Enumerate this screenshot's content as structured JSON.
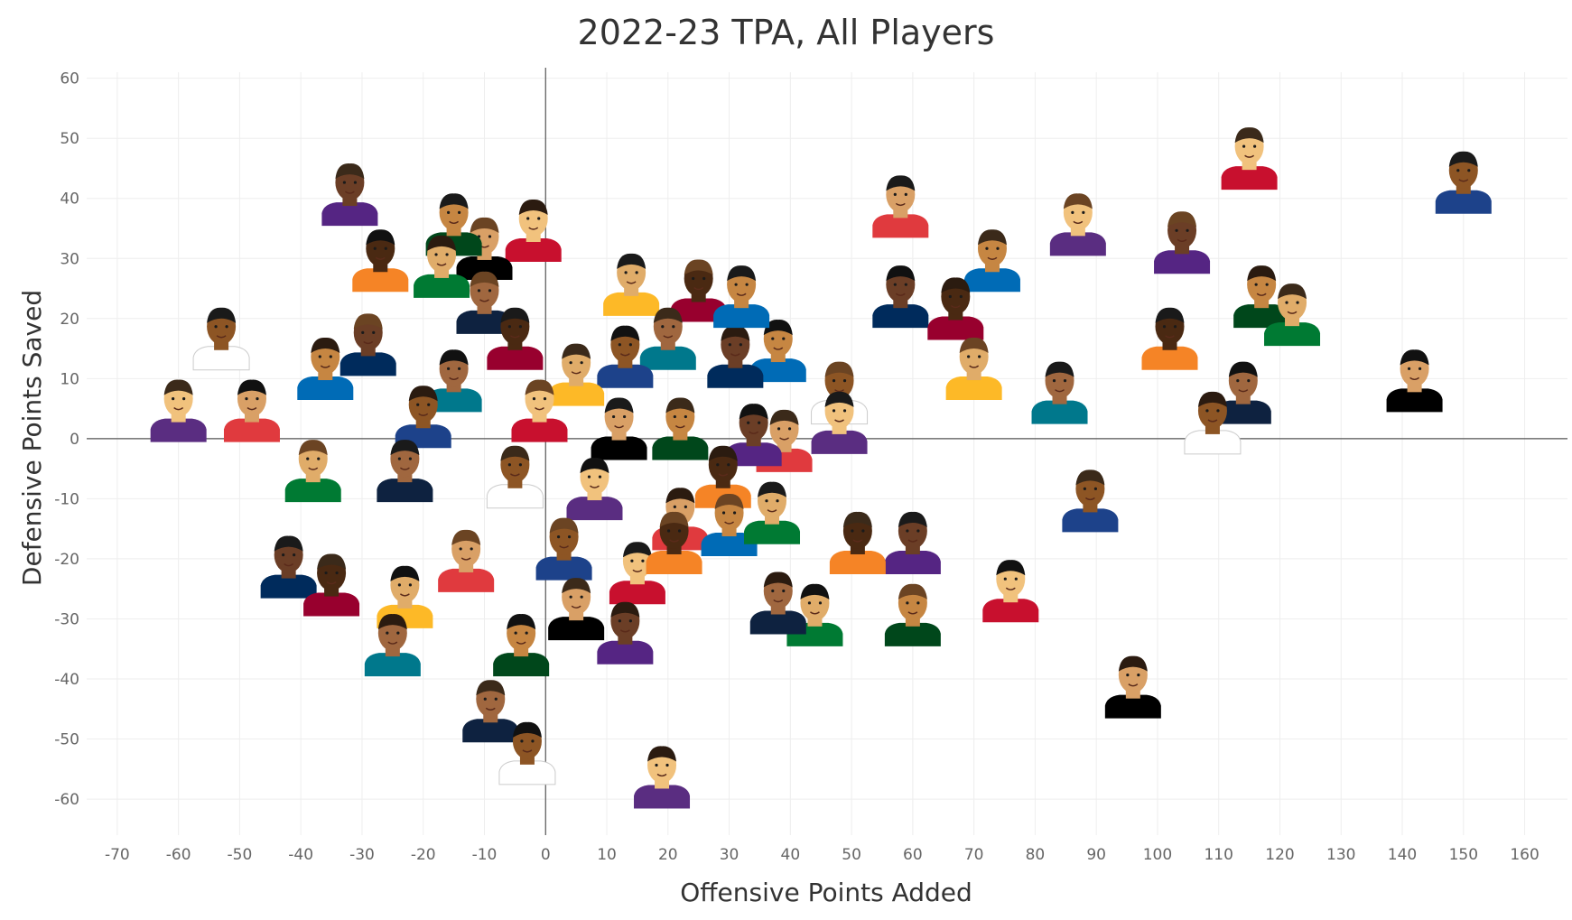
{
  "chart_data": {
    "type": "scatter",
    "title": "2022-23 TPA, All Players",
    "xlabel": "Offensive Points Added",
    "ylabel": "Defensive Points Saved",
    "xlim": [
      -75,
      167
    ],
    "ylim": [
      -66,
      61
    ],
    "xticks": [
      -70,
      -60,
      -50,
      -40,
      -30,
      -20,
      -10,
      0,
      10,
      20,
      30,
      40,
      50,
      60,
      70,
      80,
      90,
      100,
      110,
      120,
      130,
      140,
      150,
      160
    ],
    "yticks": [
      60,
      50,
      40,
      30,
      20,
      10,
      0,
      -10,
      -20,
      -30,
      -40,
      -50,
      -60
    ],
    "grid": true,
    "marker": "player-headshot",
    "points": [
      {
        "x": 150,
        "y": 43
      },
      {
        "x": 115,
        "y": 47
      },
      {
        "x": 142,
        "y": 10
      },
      {
        "x": 117,
        "y": 24
      },
      {
        "x": 104,
        "y": 33
      },
      {
        "x": 102,
        "y": 17
      },
      {
        "x": 122,
        "y": 21
      },
      {
        "x": 114,
        "y": 8
      },
      {
        "x": 109,
        "y": 3
      },
      {
        "x": 87,
        "y": 36
      },
      {
        "x": 58,
        "y": 39
      },
      {
        "x": 73,
        "y": 30
      },
      {
        "x": 58,
        "y": 24
      },
      {
        "x": 67,
        "y": 22
      },
      {
        "x": 70,
        "y": 12
      },
      {
        "x": 84,
        "y": 8
      },
      {
        "x": 89,
        "y": -10
      },
      {
        "x": 76,
        "y": -25
      },
      {
        "x": 96,
        "y": -41
      },
      {
        "x": 60,
        "y": -29
      },
      {
        "x": 60,
        "y": -17
      },
      {
        "x": 51,
        "y": -17
      },
      {
        "x": 44,
        "y": -29
      },
      {
        "x": 38,
        "y": -27
      },
      {
        "x": 48,
        "y": 8
      },
      {
        "x": 48,
        "y": 3
      },
      {
        "x": 39,
        "y": 0
      },
      {
        "x": 38,
        "y": 15
      },
      {
        "x": 31,
        "y": 14
      },
      {
        "x": 25,
        "y": 25
      },
      {
        "x": 14,
        "y": 26
      },
      {
        "x": 20,
        "y": 17
      },
      {
        "x": 13,
        "y": 14
      },
      {
        "x": -2,
        "y": 35
      },
      {
        "x": -10,
        "y": 32
      },
      {
        "x": -15,
        "y": 36
      },
      {
        "x": -32,
        "y": 41
      },
      {
        "x": -27,
        "y": 30
      },
      {
        "x": -17,
        "y": 29
      },
      {
        "x": -10,
        "y": 23
      },
      {
        "x": -53,
        "y": 17
      },
      {
        "x": -60,
        "y": 5
      },
      {
        "x": -48,
        "y": 5
      },
      {
        "x": -36,
        "y": 12
      },
      {
        "x": -29,
        "y": 16
      },
      {
        "x": -5,
        "y": 17
      },
      {
        "x": 5,
        "y": 11
      },
      {
        "x": -15,
        "y": 10
      },
      {
        "x": -20,
        "y": 4
      },
      {
        "x": -1,
        "y": 5
      },
      {
        "x": 12,
        "y": 2
      },
      {
        "x": 22,
        "y": 2
      },
      {
        "x": 34,
        "y": 1
      },
      {
        "x": 29,
        "y": -6
      },
      {
        "x": -38,
        "y": -5
      },
      {
        "x": -23,
        "y": -5
      },
      {
        "x": -5,
        "y": -6
      },
      {
        "x": 8,
        "y": -8
      },
      {
        "x": 22,
        "y": -13
      },
      {
        "x": 30,
        "y": -14
      },
      {
        "x": -42,
        "y": -21
      },
      {
        "x": -35,
        "y": -24
      },
      {
        "x": -23,
        "y": -26
      },
      {
        "x": -25,
        "y": -34
      },
      {
        "x": 3,
        "y": -18
      },
      {
        "x": 15,
        "y": -22
      },
      {
        "x": 5,
        "y": -28
      },
      {
        "x": -4,
        "y": -34
      },
      {
        "x": 13,
        "y": -32
      },
      {
        "x": 21,
        "y": -17
      },
      {
        "x": 37,
        "y": -12
      },
      {
        "x": -9,
        "y": -45
      },
      {
        "x": -3,
        "y": -52
      },
      {
        "x": 19,
        "y": -56
      },
      {
        "x": -13,
        "y": -20
      },
      {
        "x": 32,
        "y": 24
      }
    ]
  }
}
